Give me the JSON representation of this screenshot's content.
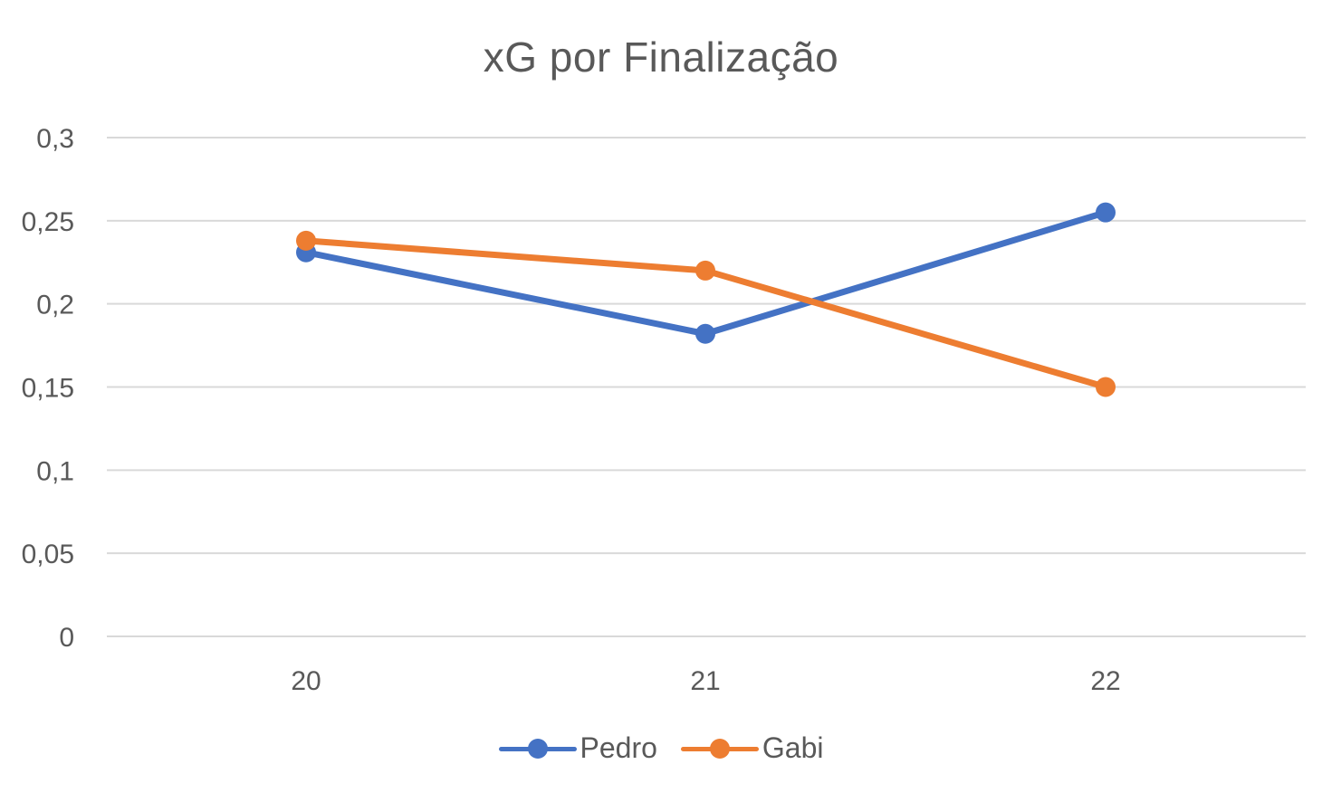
{
  "chart_data": {
    "type": "line",
    "title": "xG por Finalização",
    "categories": [
      "20",
      "21",
      "22"
    ],
    "series": [
      {
        "name": "Pedro",
        "values": [
          0.231,
          0.182,
          0.255
        ],
        "color": "#4472C4"
      },
      {
        "name": "Gabi",
        "values": [
          0.238,
          0.22,
          0.15
        ],
        "color": "#ED7D31"
      }
    ],
    "ylim": [
      0,
      0.3
    ],
    "yticks": [
      {
        "value": 0,
        "label": "0"
      },
      {
        "value": 0.05,
        "label": "0,05"
      },
      {
        "value": 0.1,
        "label": "0,1"
      },
      {
        "value": 0.15,
        "label": "0,15"
      },
      {
        "value": 0.2,
        "label": "0,2"
      },
      {
        "value": 0.25,
        "label": "0,25"
      },
      {
        "value": 0.3,
        "label": "0,3"
      }
    ],
    "grid": true,
    "legend_position": "bottom",
    "xlabel": "",
    "ylabel": ""
  }
}
